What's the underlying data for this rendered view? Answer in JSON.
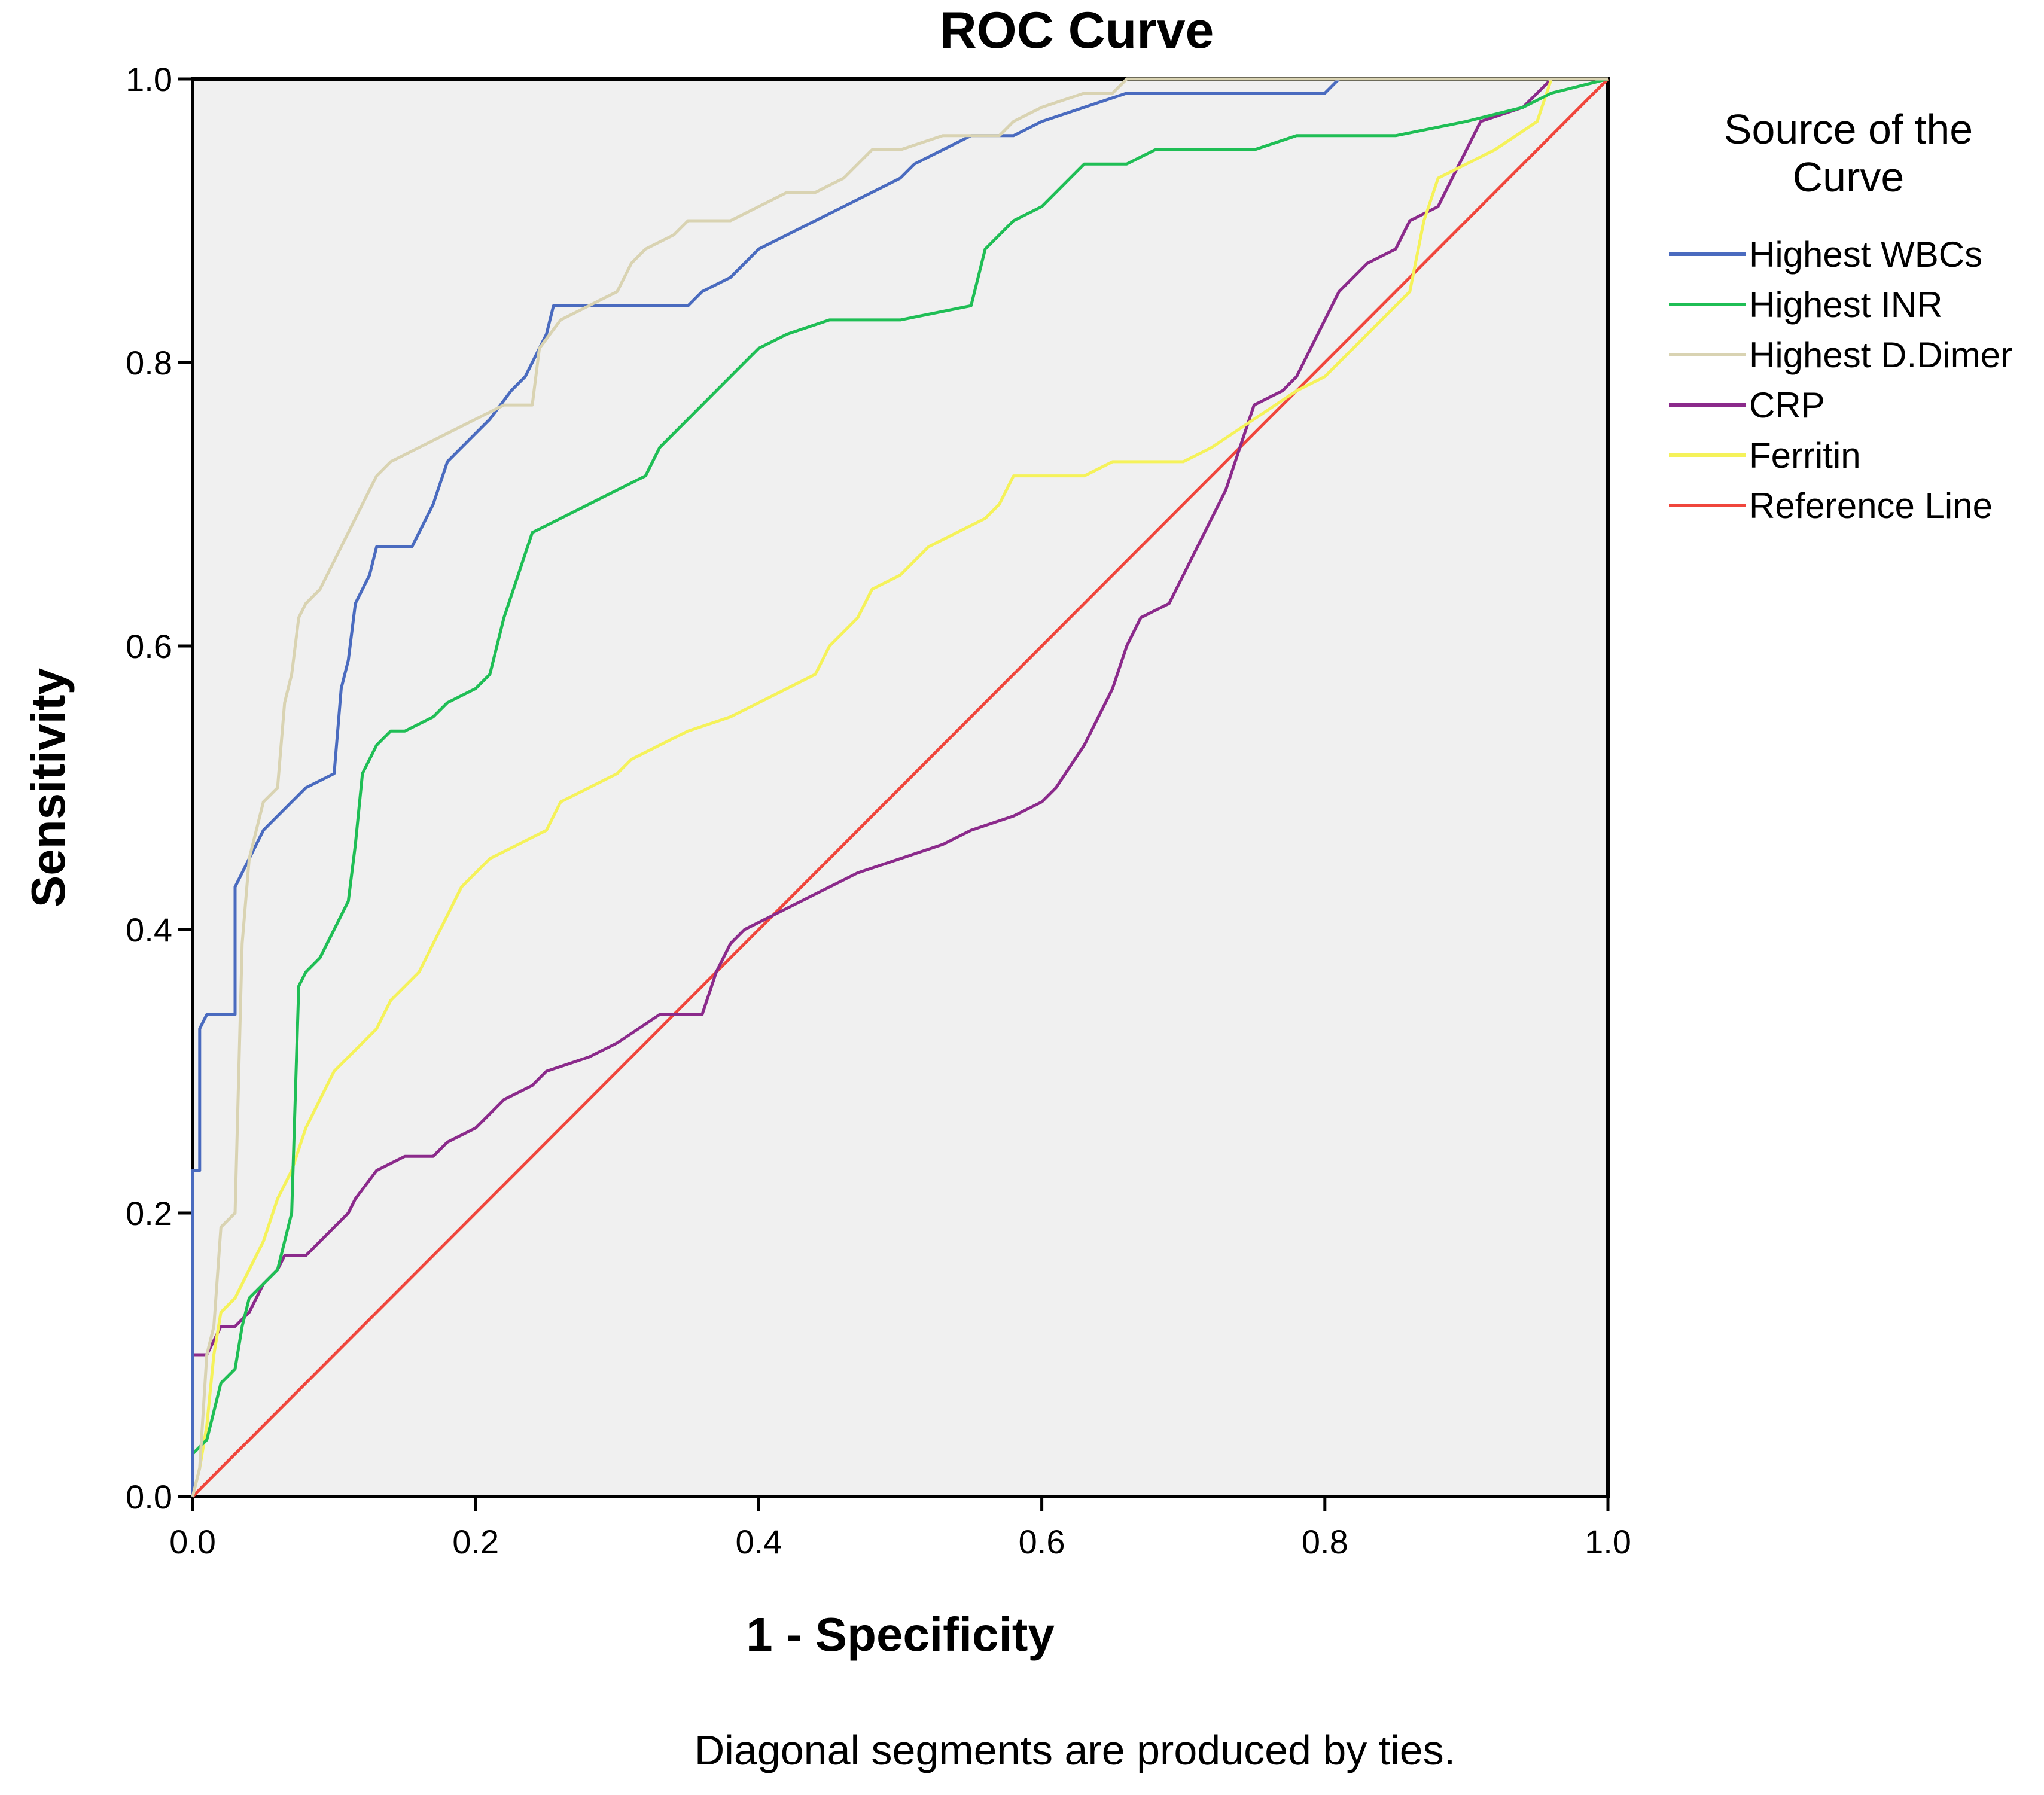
{
  "chart_data": {
    "type": "line",
    "title": "ROC Curve",
    "xlabel": "1 - Specificity",
    "ylabel": "Sensitivity",
    "xlim": [
      0,
      1
    ],
    "ylim": [
      0,
      1
    ],
    "xticks": [
      "0.0",
      "0.2",
      "0.4",
      "0.6",
      "0.8",
      "1.0"
    ],
    "yticks": [
      "0.0",
      "0.2",
      "0.4",
      "0.6",
      "0.8",
      "1.0"
    ],
    "legend_title_line1": "Source of the",
    "legend_title_line2": "Curve",
    "legend_position": "right",
    "note": "Diagonal segments are produced by ties.",
    "plot_background": "#f0f0f0",
    "series": [
      {
        "name": "Highest WBCs",
        "color": "#4a6bbf",
        "points": [
          [
            0,
            0
          ],
          [
            0,
            0.23
          ],
          [
            0.005,
            0.23
          ],
          [
            0.005,
            0.33
          ],
          [
            0.01,
            0.34
          ],
          [
            0.03,
            0.34
          ],
          [
            0.03,
            0.43
          ],
          [
            0.04,
            0.45
          ],
          [
            0.05,
            0.47
          ],
          [
            0.06,
            0.48
          ],
          [
            0.07,
            0.49
          ],
          [
            0.08,
            0.5
          ],
          [
            0.1,
            0.51
          ],
          [
            0.105,
            0.57
          ],
          [
            0.11,
            0.59
          ],
          [
            0.115,
            0.63
          ],
          [
            0.125,
            0.65
          ],
          [
            0.13,
            0.67
          ],
          [
            0.14,
            0.67
          ],
          [
            0.155,
            0.67
          ],
          [
            0.17,
            0.7
          ],
          [
            0.18,
            0.73
          ],
          [
            0.2,
            0.75
          ],
          [
            0.21,
            0.76
          ],
          [
            0.225,
            0.78
          ],
          [
            0.235,
            0.79
          ],
          [
            0.25,
            0.82
          ],
          [
            0.255,
            0.84
          ],
          [
            0.3,
            0.84
          ],
          [
            0.35,
            0.84
          ],
          [
            0.36,
            0.85
          ],
          [
            0.38,
            0.86
          ],
          [
            0.4,
            0.88
          ],
          [
            0.42,
            0.89
          ],
          [
            0.44,
            0.9
          ],
          [
            0.46,
            0.91
          ],
          [
            0.48,
            0.92
          ],
          [
            0.5,
            0.93
          ],
          [
            0.51,
            0.94
          ],
          [
            0.53,
            0.95
          ],
          [
            0.55,
            0.96
          ],
          [
            0.58,
            0.96
          ],
          [
            0.6,
            0.97
          ],
          [
            0.63,
            0.98
          ],
          [
            0.66,
            0.99
          ],
          [
            0.7,
            0.99
          ],
          [
            0.8,
            0.99
          ],
          [
            0.81,
            1
          ],
          [
            0.9,
            1
          ],
          [
            1,
            1
          ]
        ]
      },
      {
        "name": "Highest INR",
        "color": "#1fbe55",
        "points": [
          [
            0,
            0
          ],
          [
            0,
            0.03
          ],
          [
            0.01,
            0.04
          ],
          [
            0.015,
            0.06
          ],
          [
            0.02,
            0.08
          ],
          [
            0.03,
            0.09
          ],
          [
            0.035,
            0.12
          ],
          [
            0.04,
            0.14
          ],
          [
            0.05,
            0.15
          ],
          [
            0.06,
            0.16
          ],
          [
            0.07,
            0.2
          ],
          [
            0.075,
            0.36
          ],
          [
            0.08,
            0.37
          ],
          [
            0.09,
            0.38
          ],
          [
            0.1,
            0.4
          ],
          [
            0.11,
            0.42
          ],
          [
            0.115,
            0.46
          ],
          [
            0.12,
            0.51
          ],
          [
            0.13,
            0.53
          ],
          [
            0.14,
            0.54
          ],
          [
            0.15,
            0.54
          ],
          [
            0.17,
            0.55
          ],
          [
            0.18,
            0.56
          ],
          [
            0.2,
            0.57
          ],
          [
            0.21,
            0.58
          ],
          [
            0.22,
            0.62
          ],
          [
            0.23,
            0.65
          ],
          [
            0.24,
            0.68
          ],
          [
            0.26,
            0.69
          ],
          [
            0.28,
            0.7
          ],
          [
            0.3,
            0.71
          ],
          [
            0.32,
            0.72
          ],
          [
            0.33,
            0.74
          ],
          [
            0.35,
            0.76
          ],
          [
            0.37,
            0.78
          ],
          [
            0.39,
            0.8
          ],
          [
            0.4,
            0.81
          ],
          [
            0.42,
            0.82
          ],
          [
            0.45,
            0.83
          ],
          [
            0.5,
            0.83
          ],
          [
            0.55,
            0.84
          ],
          [
            0.56,
            0.88
          ],
          [
            0.58,
            0.9
          ],
          [
            0.6,
            0.91
          ],
          [
            0.62,
            0.93
          ],
          [
            0.63,
            0.94
          ],
          [
            0.66,
            0.94
          ],
          [
            0.68,
            0.95
          ],
          [
            0.75,
            0.95
          ],
          [
            0.78,
            0.96
          ],
          [
            0.85,
            0.96
          ],
          [
            0.9,
            0.97
          ],
          [
            0.94,
            0.98
          ],
          [
            0.96,
            0.99
          ],
          [
            1,
            1
          ]
        ]
      },
      {
        "name": "Highest D.Dimer",
        "color": "#d9d3b2",
        "points": [
          [
            0,
            0
          ],
          [
            0.005,
            0.02
          ],
          [
            0.01,
            0.1
          ],
          [
            0.015,
            0.12
          ],
          [
            0.02,
            0.19
          ],
          [
            0.03,
            0.2
          ],
          [
            0.035,
            0.39
          ],
          [
            0.04,
            0.45
          ],
          [
            0.05,
            0.49
          ],
          [
            0.06,
            0.5
          ],
          [
            0.065,
            0.56
          ],
          [
            0.07,
            0.58
          ],
          [
            0.075,
            0.62
          ],
          [
            0.08,
            0.63
          ],
          [
            0.09,
            0.64
          ],
          [
            0.1,
            0.66
          ],
          [
            0.11,
            0.68
          ],
          [
            0.12,
            0.7
          ],
          [
            0.13,
            0.72
          ],
          [
            0.14,
            0.73
          ],
          [
            0.16,
            0.74
          ],
          [
            0.18,
            0.75
          ],
          [
            0.2,
            0.76
          ],
          [
            0.22,
            0.77
          ],
          [
            0.24,
            0.77
          ],
          [
            0.245,
            0.81
          ],
          [
            0.26,
            0.83
          ],
          [
            0.28,
            0.84
          ],
          [
            0.3,
            0.85
          ],
          [
            0.31,
            0.87
          ],
          [
            0.32,
            0.88
          ],
          [
            0.34,
            0.89
          ],
          [
            0.35,
            0.9
          ],
          [
            0.38,
            0.9
          ],
          [
            0.4,
            0.91
          ],
          [
            0.42,
            0.92
          ],
          [
            0.44,
            0.92
          ],
          [
            0.46,
            0.93
          ],
          [
            0.48,
            0.95
          ],
          [
            0.5,
            0.95
          ],
          [
            0.53,
            0.96
          ],
          [
            0.57,
            0.96
          ],
          [
            0.58,
            0.97
          ],
          [
            0.6,
            0.98
          ],
          [
            0.63,
            0.99
          ],
          [
            0.65,
            0.99
          ],
          [
            0.66,
            1
          ],
          [
            1,
            1
          ]
        ]
      },
      {
        "name": "CRP",
        "color": "#8b2a8b",
        "points": [
          [
            0,
            0
          ],
          [
            0,
            0.1
          ],
          [
            0.01,
            0.1
          ],
          [
            0.015,
            0.11
          ],
          [
            0.02,
            0.12
          ],
          [
            0.03,
            0.12
          ],
          [
            0.04,
            0.13
          ],
          [
            0.05,
            0.15
          ],
          [
            0.06,
            0.16
          ],
          [
            0.065,
            0.17
          ],
          [
            0.08,
            0.17
          ],
          [
            0.09,
            0.18
          ],
          [
            0.1,
            0.19
          ],
          [
            0.11,
            0.2
          ],
          [
            0.115,
            0.21
          ],
          [
            0.13,
            0.23
          ],
          [
            0.15,
            0.24
          ],
          [
            0.17,
            0.24
          ],
          [
            0.18,
            0.25
          ],
          [
            0.2,
            0.26
          ],
          [
            0.21,
            0.27
          ],
          [
            0.22,
            0.28
          ],
          [
            0.24,
            0.29
          ],
          [
            0.25,
            0.3
          ],
          [
            0.28,
            0.31
          ],
          [
            0.3,
            0.32
          ],
          [
            0.33,
            0.34
          ],
          [
            0.36,
            0.34
          ],
          [
            0.37,
            0.37
          ],
          [
            0.38,
            0.39
          ],
          [
            0.39,
            0.4
          ],
          [
            0.41,
            0.41
          ],
          [
            0.43,
            0.42
          ],
          [
            0.45,
            0.43
          ],
          [
            0.47,
            0.44
          ],
          [
            0.5,
            0.45
          ],
          [
            0.53,
            0.46
          ],
          [
            0.55,
            0.47
          ],
          [
            0.58,
            0.48
          ],
          [
            0.6,
            0.49
          ],
          [
            0.61,
            0.5
          ],
          [
            0.63,
            0.53
          ],
          [
            0.64,
            0.55
          ],
          [
            0.65,
            0.57
          ],
          [
            0.66,
            0.6
          ],
          [
            0.67,
            0.62
          ],
          [
            0.69,
            0.63
          ],
          [
            0.7,
            0.65
          ],
          [
            0.71,
            0.67
          ],
          [
            0.72,
            0.69
          ],
          [
            0.73,
            0.71
          ],
          [
            0.74,
            0.74
          ],
          [
            0.75,
            0.77
          ],
          [
            0.77,
            0.78
          ],
          [
            0.78,
            0.79
          ],
          [
            0.79,
            0.81
          ],
          [
            0.8,
            0.83
          ],
          [
            0.81,
            0.85
          ],
          [
            0.83,
            0.87
          ],
          [
            0.85,
            0.88
          ],
          [
            0.86,
            0.9
          ],
          [
            0.88,
            0.91
          ],
          [
            0.89,
            0.93
          ],
          [
            0.9,
            0.95
          ],
          [
            0.91,
            0.97
          ],
          [
            0.94,
            0.98
          ],
          [
            0.95,
            0.99
          ],
          [
            0.96,
            1
          ],
          [
            1,
            1
          ]
        ]
      },
      {
        "name": "Ferritin",
        "color": "#f5f25a",
        "points": [
          [
            0,
            0
          ],
          [
            0.005,
            0.02
          ],
          [
            0.01,
            0.05
          ],
          [
            0.015,
            0.1
          ],
          [
            0.02,
            0.13
          ],
          [
            0.03,
            0.14
          ],
          [
            0.04,
            0.16
          ],
          [
            0.05,
            0.18
          ],
          [
            0.06,
            0.21
          ],
          [
            0.07,
            0.23
          ],
          [
            0.08,
            0.26
          ],
          [
            0.09,
            0.28
          ],
          [
            0.1,
            0.3
          ],
          [
            0.11,
            0.31
          ],
          [
            0.13,
            0.33
          ],
          [
            0.14,
            0.35
          ],
          [
            0.16,
            0.37
          ],
          [
            0.17,
            0.39
          ],
          [
            0.18,
            0.41
          ],
          [
            0.19,
            0.43
          ],
          [
            0.2,
            0.44
          ],
          [
            0.21,
            0.45
          ],
          [
            0.23,
            0.46
          ],
          [
            0.25,
            0.47
          ],
          [
            0.26,
            0.49
          ],
          [
            0.28,
            0.5
          ],
          [
            0.3,
            0.51
          ],
          [
            0.31,
            0.52
          ],
          [
            0.33,
            0.53
          ],
          [
            0.35,
            0.54
          ],
          [
            0.38,
            0.55
          ],
          [
            0.4,
            0.56
          ],
          [
            0.42,
            0.57
          ],
          [
            0.44,
            0.58
          ],
          [
            0.45,
            0.6
          ],
          [
            0.46,
            0.61
          ],
          [
            0.47,
            0.62
          ],
          [
            0.48,
            0.64
          ],
          [
            0.5,
            0.65
          ],
          [
            0.52,
            0.67
          ],
          [
            0.54,
            0.68
          ],
          [
            0.56,
            0.69
          ],
          [
            0.57,
            0.7
          ],
          [
            0.58,
            0.72
          ],
          [
            0.6,
            0.72
          ],
          [
            0.63,
            0.72
          ],
          [
            0.65,
            0.73
          ],
          [
            0.7,
            0.73
          ],
          [
            0.72,
            0.74
          ],
          [
            0.75,
            0.76
          ],
          [
            0.78,
            0.78
          ],
          [
            0.8,
            0.79
          ],
          [
            0.82,
            0.81
          ],
          [
            0.84,
            0.83
          ],
          [
            0.86,
            0.85
          ],
          [
            0.87,
            0.9
          ],
          [
            0.88,
            0.93
          ],
          [
            0.9,
            0.94
          ],
          [
            0.92,
            0.95
          ],
          [
            0.95,
            0.97
          ],
          [
            0.96,
            1
          ],
          [
            1,
            1
          ]
        ]
      },
      {
        "name": "Reference Line",
        "color": "#f0463c",
        "points": [
          [
            0,
            0
          ],
          [
            1,
            1
          ]
        ]
      }
    ]
  }
}
